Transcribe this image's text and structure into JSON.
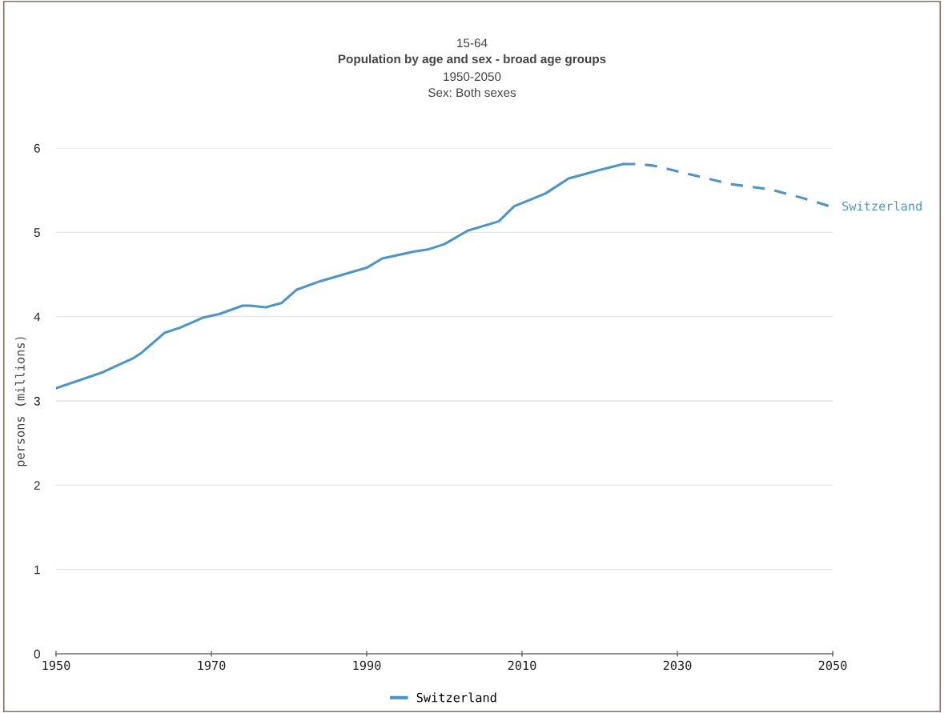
{
  "chart_data": {
    "type": "line",
    "subtitle": "15-64",
    "title": "Population by age and sex - broad age groups",
    "annotations": [
      "1950-2050",
      "Sex: Both sexes",
      {
        "text": "Switzerland",
        "x": 2050,
        "y": 5.3
      }
    ],
    "ylabel": "persons (millions)",
    "series": [
      {
        "name": "Switzerland",
        "color": "#4a96cc",
        "line_style": "solid",
        "x": [
          1950,
          1956,
          1960,
          1961,
          1963,
          1964,
          1966,
          1969,
          1971,
          1974,
          1975,
          1977,
          1979,
          1981,
          1984,
          1987,
          1990,
          1992,
          1996,
          1998,
          2000,
          2003,
          2007,
          2009,
          2013,
          2016,
          2018,
          2020,
          2023
        ],
        "values": [
          3.15,
          3.34,
          3.51,
          3.57,
          3.73,
          3.81,
          3.87,
          3.99,
          4.03,
          4.13,
          4.13,
          4.11,
          4.16,
          4.32,
          4.42,
          4.5,
          4.58,
          4.69,
          4.77,
          4.8,
          4.86,
          5.02,
          5.13,
          5.31,
          5.46,
          5.64,
          5.69,
          5.74,
          5.81
        ]
      },
      {
        "color": "#4a96cc",
        "line_style": "dashed",
        "x": [
          2023,
          2025,
          2027,
          2032,
          2037,
          2042,
          2046,
          2050
        ],
        "values": [
          5.81,
          5.81,
          5.79,
          5.68,
          5.57,
          5.51,
          5.41,
          5.3
        ]
      }
    ],
    "xlim": [
      1950,
      2050
    ],
    "xticks": [
      1950,
      1970,
      1990,
      2010,
      2030,
      2050
    ],
    "ylim": [
      0,
      6
    ],
    "yticks": [
      0,
      1,
      2,
      3,
      4,
      5,
      6
    ],
    "grid": "y",
    "legend": "bottom"
  }
}
